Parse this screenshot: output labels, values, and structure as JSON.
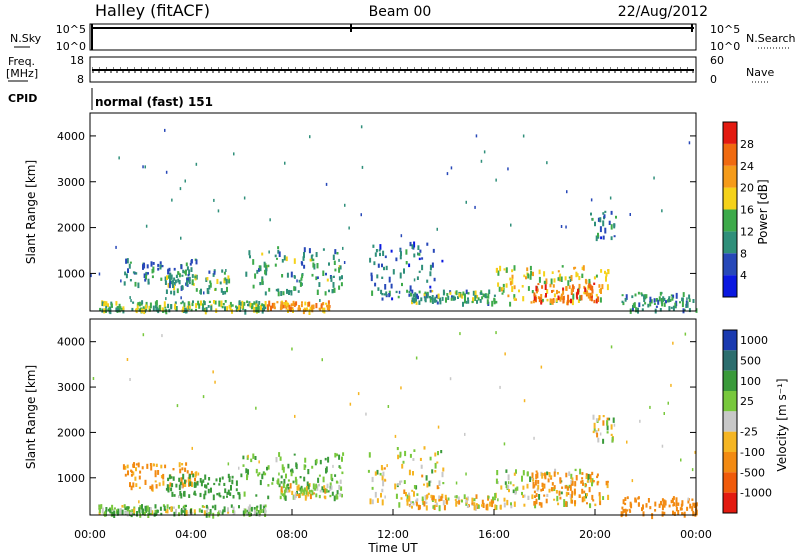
{
  "header": {
    "station": "Halley (fitACF)",
    "beam": "Beam 00",
    "date": "22/Aug/2012"
  },
  "top_panels": {
    "nsky_label": "N.Sky",
    "nsky_ticks": [
      "10^5",
      "10^0"
    ],
    "nsearch_label": "N.Search",
    "nsearch_ticks": [
      "10^5",
      "10^0"
    ],
    "freq_label": "Freq.",
    "freq_unit": "[MHz]",
    "freq_ticks": [
      "18",
      "8"
    ],
    "nave_label": "Nave",
    "nave_ticks": [
      "60",
      "0"
    ],
    "cpid_label": "CPID",
    "cpid_text": "normal (fast) 151"
  },
  "colors": {
    "power_scale": [
      "#0a18e0",
      "#2748b8",
      "#2f8f7a",
      "#3daa4a",
      "#f5d21a",
      "#f59b1a",
      "#f06a10",
      "#e31a10"
    ],
    "velocity_scale": [
      "#e31a10",
      "#f05a0a",
      "#f28a12",
      "#f5b522",
      "#c8c8c8",
      "#78c83c",
      "#3a9a3a",
      "#2c6e6e",
      "#1a3ab0"
    ]
  },
  "chart_data": [
    {
      "type": "heatmap",
      "title": "Power",
      "ylabel": "Slant Range [km]",
      "xlabel": "",
      "x_ticks": [
        "00:00",
        "04:00",
        "08:00",
        "12:00",
        "16:00",
        "20:00",
        "00:00"
      ],
      "xlim": [
        0,
        24
      ],
      "y_ticks": [
        "4000",
        "3000",
        "2000",
        "1000"
      ],
      "ylim": [
        180,
        4500
      ],
      "colorbar_label": "Power [dB]",
      "colorbar_ticks": [
        "28",
        "24",
        "20",
        "16",
        "12",
        "8",
        "4"
      ],
      "colorbar_range": [
        0,
        32
      ],
      "blobs": [
        {
          "t0": 1.3,
          "t1": 4.2,
          "r0": 800,
          "r1": 1350,
          "v": 9
        },
        {
          "t0": 3.0,
          "t1": 5.5,
          "r0": 600,
          "r1": 1100,
          "v": 12
        },
        {
          "t0": 6.0,
          "t1": 10.0,
          "r0": 600,
          "r1": 1600,
          "v": 12
        },
        {
          "t0": 0.3,
          "t1": 7.0,
          "r0": 220,
          "r1": 420,
          "v": 14
        },
        {
          "t0": 7.0,
          "t1": 9.5,
          "r0": 220,
          "r1": 420,
          "v": 22
        },
        {
          "t0": 11.0,
          "t1": 14.0,
          "r0": 450,
          "r1": 1700,
          "v": 8
        },
        {
          "t0": 12.5,
          "t1": 16.0,
          "r0": 380,
          "r1": 650,
          "v": 12
        },
        {
          "t0": 16.0,
          "t1": 20.5,
          "r0": 380,
          "r1": 1200,
          "v": 18
        },
        {
          "t0": 17.5,
          "t1": 20.2,
          "r0": 400,
          "r1": 800,
          "v": 25
        },
        {
          "t0": 19.8,
          "t1": 20.8,
          "r0": 1800,
          "r1": 2400,
          "v": 8
        },
        {
          "t0": 21.0,
          "t1": 24.0,
          "r0": 220,
          "r1": 600,
          "v": 10
        }
      ]
    },
    {
      "type": "heatmap",
      "title": "Velocity",
      "ylabel": "Slant Range [km]",
      "xlabel": "Time UT",
      "x_ticks": [
        "00:00",
        "04:00",
        "08:00",
        "12:00",
        "16:00",
        "20:00",
        "00:00"
      ],
      "xlim": [
        0,
        24
      ],
      "y_ticks": [
        "4000",
        "3000",
        "2000",
        "1000"
      ],
      "ylim": [
        180,
        4500
      ],
      "colorbar_label": "Velocity [m s⁻¹]",
      "colorbar_ticks": [
        "1000",
        "500",
        "100",
        "25",
        "-25",
        "-100",
        "-500",
        "-1000"
      ],
      "blobs": [
        {
          "t0": 1.3,
          "t1": 4.2,
          "r0": 800,
          "r1": 1350,
          "v": -150
        },
        {
          "t0": 3.0,
          "t1": 6.0,
          "r0": 600,
          "r1": 1100,
          "v": 300
        },
        {
          "t0": 6.0,
          "t1": 10.0,
          "r0": 600,
          "r1": 1600,
          "v": 120
        },
        {
          "t0": 7.5,
          "t1": 10.0,
          "r0": 600,
          "r1": 900,
          "v": 0
        },
        {
          "t0": 0.3,
          "t1": 7.0,
          "r0": 220,
          "r1": 420,
          "v": 80
        },
        {
          "t0": 11.0,
          "t1": 14.0,
          "r0": 450,
          "r1": 1700,
          "v": 0
        },
        {
          "t0": 12.5,
          "t1": 16.0,
          "r0": 380,
          "r1": 650,
          "v": -60
        },
        {
          "t0": 16.0,
          "t1": 20.5,
          "r0": 380,
          "r1": 1200,
          "v": 0
        },
        {
          "t0": 17.5,
          "t1": 20.2,
          "r0": 450,
          "r1": 1150,
          "v": -200
        },
        {
          "t0": 19.8,
          "t1": 20.8,
          "r0": 1800,
          "r1": 2400,
          "v": 0
        },
        {
          "t0": 21.0,
          "t1": 24.0,
          "r0": 220,
          "r1": 600,
          "v": -300
        }
      ]
    }
  ]
}
